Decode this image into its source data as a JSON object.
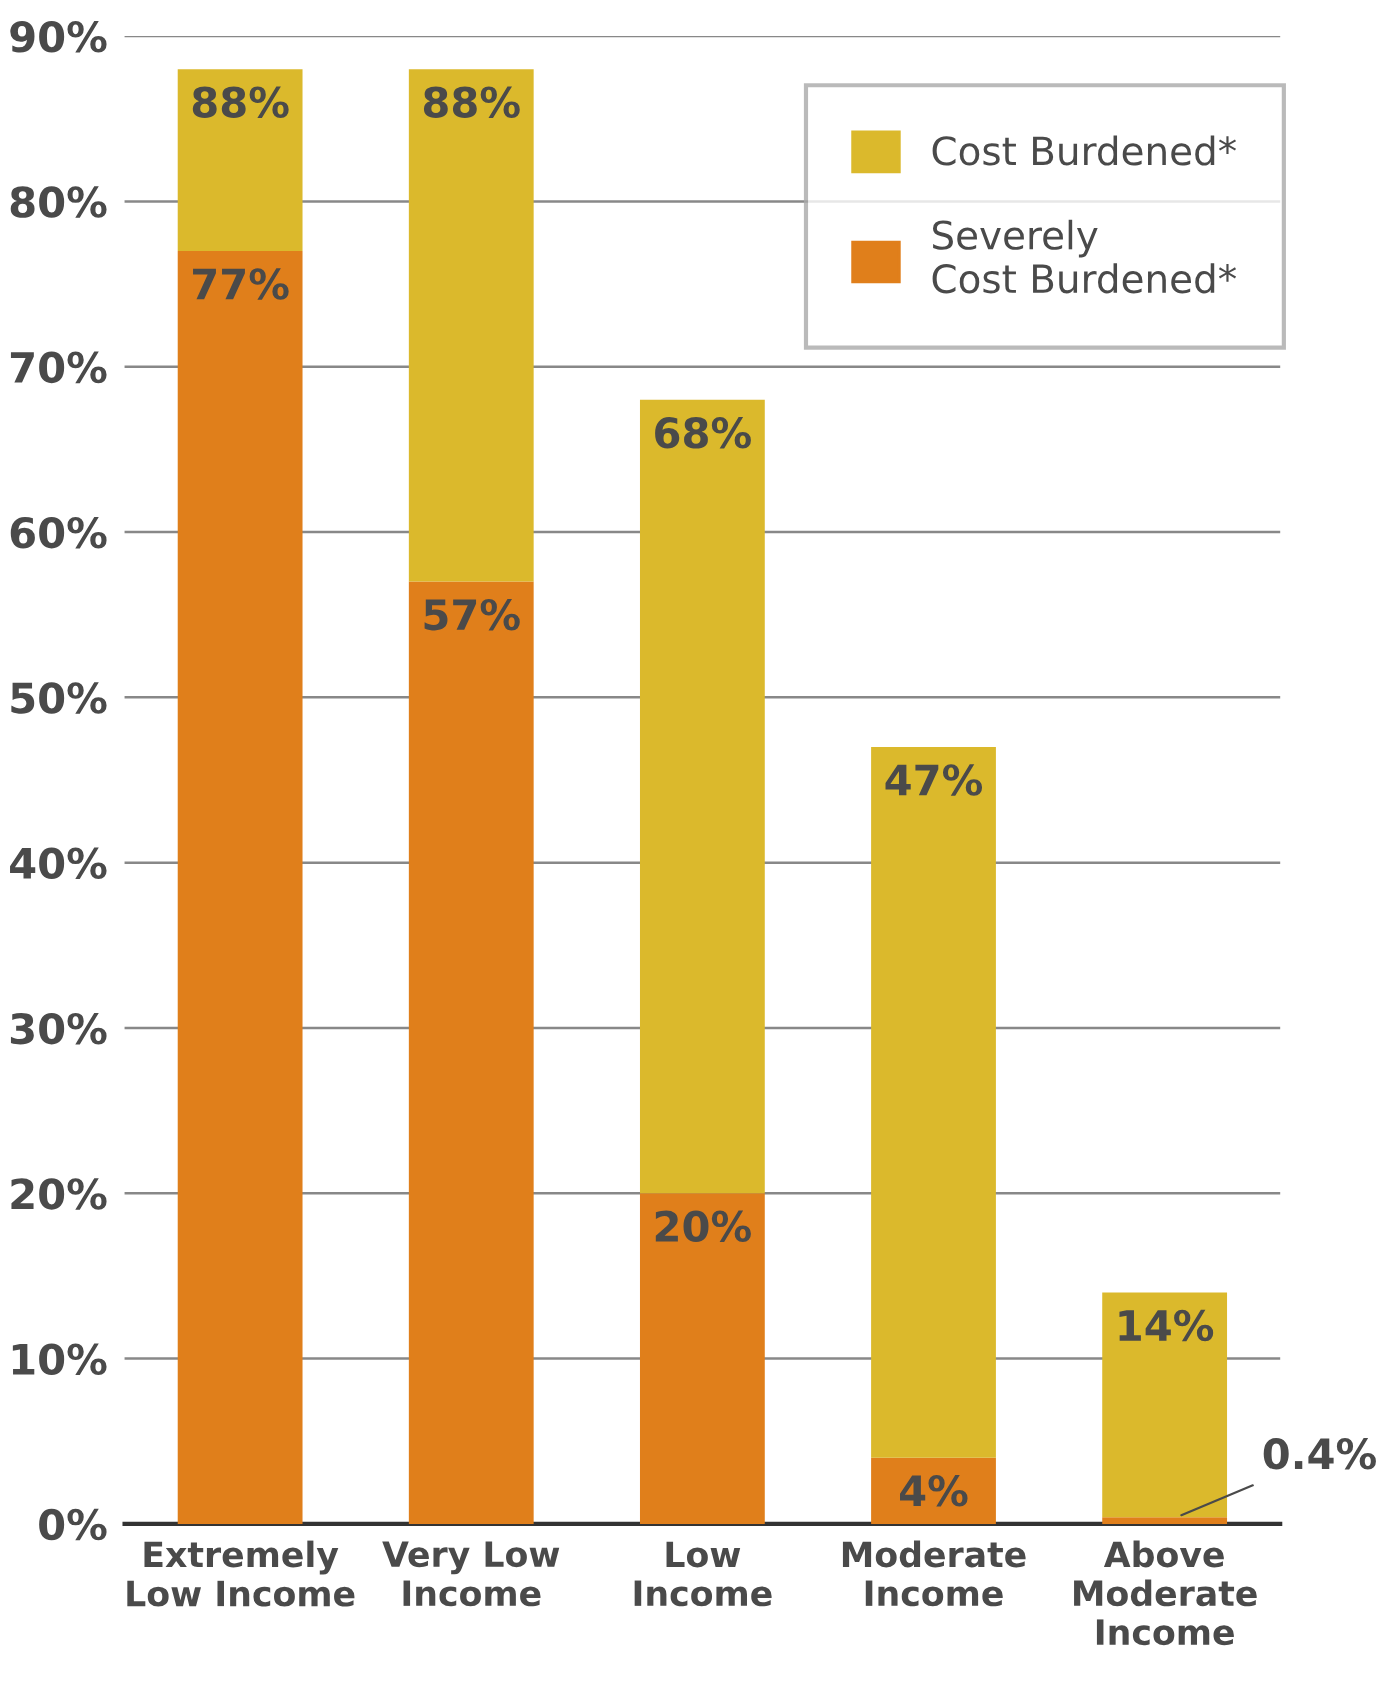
{
  "chart_data": {
    "type": "bar",
    "stacked": true,
    "categories": [
      "Extremely\nLow Income",
      "Very Low\nIncome",
      "Low\nIncome",
      "Moderate\nIncome",
      "Above\nModerate\nIncome"
    ],
    "series": [
      {
        "name": "Severely\nCost Burdened*",
        "color": "#e07f1b",
        "values": [
          77,
          57,
          20,
          4,
          0.4
        ],
        "value_labels": [
          "77%",
          "57%",
          "20%",
          "4%",
          "0.4%"
        ]
      },
      {
        "name": "Cost Burdened*",
        "color": "#dbb92c",
        "values": [
          11,
          31,
          48,
          43,
          13.6
        ]
      }
    ],
    "totals": [
      "88%",
      "88%",
      "68%",
      "47%",
      "14%"
    ],
    "ylim": [
      0,
      90
    ],
    "yticks": [
      {
        "value": 0,
        "label": "0%"
      },
      {
        "value": 10,
        "label": "10%"
      },
      {
        "value": 20,
        "label": "20%"
      },
      {
        "value": 30,
        "label": "30%"
      },
      {
        "value": 40,
        "label": "40%"
      },
      {
        "value": 50,
        "label": "50%"
      },
      {
        "value": 60,
        "label": "60%"
      },
      {
        "value": 70,
        "label": "70%"
      },
      {
        "value": 80,
        "label": "80%"
      },
      {
        "value": 90,
        "label": "90%"
      }
    ],
    "grid": "y",
    "legend": "top right"
  }
}
